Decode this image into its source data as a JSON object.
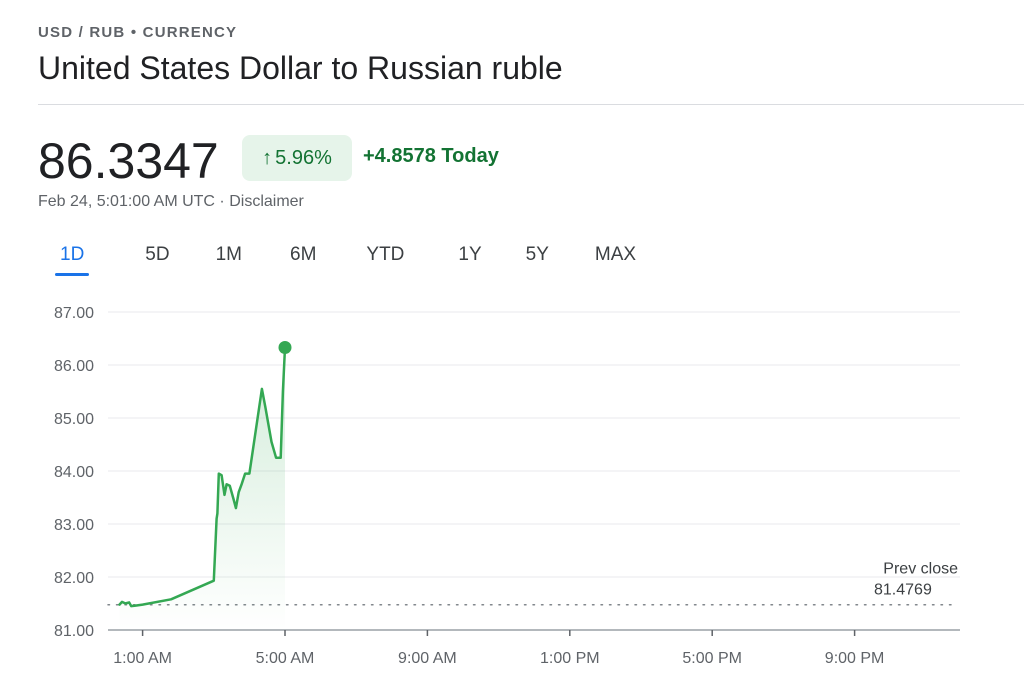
{
  "header": {
    "eyebrow": "USD / RUB • CURRENCY",
    "title": "United States Dollar to Russian ruble"
  },
  "quote": {
    "price": "86.3347",
    "change_pct": "5.96%",
    "change_abs": "+4.8578 Today",
    "timestamp": "Feb 24, 5:01:00 AM UTC",
    "separator": " · ",
    "disclaimer": "Disclaimer",
    "arrow_icon": "arrow-up-icon",
    "positive_color": "#137333",
    "positive_bg": "#e6f4ea"
  },
  "tabs": [
    {
      "label": "1D",
      "active": true
    },
    {
      "label": "5D",
      "active": false
    },
    {
      "label": "1M",
      "active": false
    },
    {
      "label": "6M",
      "active": false
    },
    {
      "label": "YTD",
      "active": false
    },
    {
      "label": "1Y",
      "active": false
    },
    {
      "label": "5Y",
      "active": false
    },
    {
      "label": "MAX",
      "active": false
    }
  ],
  "chart_data": {
    "type": "line",
    "line_color": "#34a853",
    "y_ticks": [
      "87.00",
      "86.00",
      "85.00",
      "84.00",
      "83.00",
      "82.00",
      "81.00"
    ],
    "ylim": [
      81,
      87
    ],
    "x_ticks": [
      {
        "label": "1:00 AM",
        "hour": 1
      },
      {
        "label": "5:00 AM",
        "hour": 5
      },
      {
        "label": "9:00 AM",
        "hour": 9
      },
      {
        "label": "1:00 PM",
        "hour": 13
      },
      {
        "label": "5:00 PM",
        "hour": 17
      },
      {
        "label": "9:00 PM",
        "hour": 21
      }
    ],
    "xlim_hours": [
      0,
      24
    ],
    "grid": true,
    "prev_close": {
      "label": "Prev close",
      "value": 81.4769,
      "value_label": "81.4769"
    },
    "series": [
      {
        "hours": [
          0.35,
          0.42,
          0.52,
          0.62,
          0.68,
          0.8,
          1.0,
          1.8,
          3.0,
          3.08,
          3.1,
          3.14,
          3.22,
          3.3,
          3.36,
          3.45,
          3.55,
          3.62,
          3.7,
          3.78,
          3.88,
          4.0,
          4.35,
          4.45,
          4.62,
          4.75,
          4.88,
          4.94,
          5.0
        ],
        "values": [
          81.48,
          81.53,
          81.5,
          81.52,
          81.45,
          81.46,
          81.48,
          81.58,
          81.93,
          83.1,
          83.2,
          83.95,
          83.92,
          83.55,
          83.75,
          83.72,
          83.48,
          83.3,
          83.6,
          83.75,
          83.95,
          83.95,
          85.55,
          85.2,
          84.55,
          84.25,
          84.25,
          85.5,
          86.33
        ]
      }
    ]
  }
}
